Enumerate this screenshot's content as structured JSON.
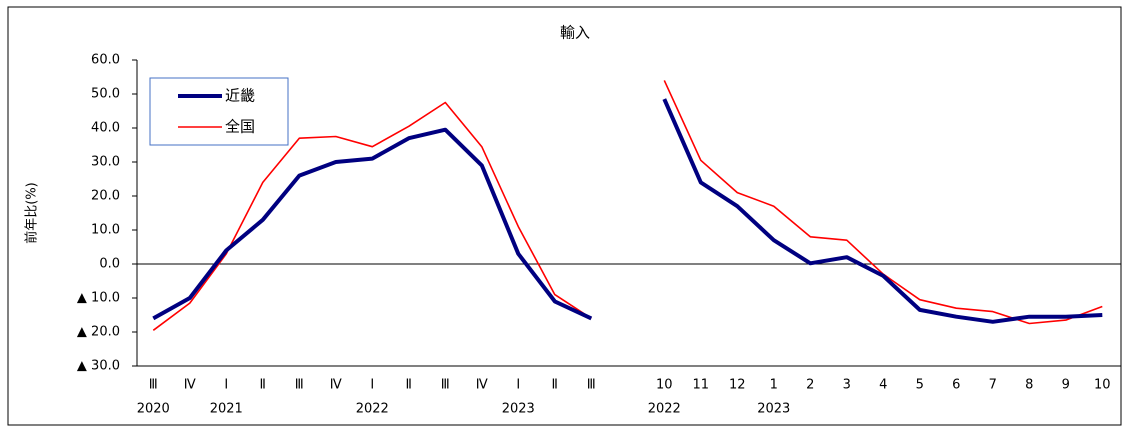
{
  "chart_data": {
    "type": "line",
    "title": "輸入",
    "y_label": "前年比(%)",
    "categories": [
      "Ⅲ",
      "Ⅳ",
      "Ⅰ",
      "Ⅱ",
      "Ⅲ",
      "Ⅳ",
      "Ⅰ",
      "Ⅱ",
      "Ⅲ",
      "Ⅳ",
      "Ⅰ",
      "Ⅱ",
      "Ⅲ",
      null,
      "10",
      "11",
      "12",
      "1",
      "2",
      "3",
      "4",
      "5",
      "6",
      "7",
      "8",
      "9",
      "10"
    ],
    "year_labels": [
      "2020",
      null,
      "2021",
      null,
      null,
      null,
      "2022",
      null,
      null,
      null,
      "2023",
      null,
      null,
      null,
      "2022",
      null,
      null,
      "2023",
      null,
      null,
      null,
      null,
      null,
      null,
      null,
      null,
      null
    ],
    "series": [
      {
        "name": "近畿",
        "color": "#000080",
        "width": 4,
        "values": [
          -16,
          -10,
          4,
          13,
          26,
          30,
          31,
          37,
          39.5,
          29,
          3,
          -11,
          -16,
          null,
          48.5,
          24,
          17,
          7,
          0.2,
          2,
          -3.5,
          -13.5,
          -15.5,
          -17,
          -15.5,
          -15.5,
          -15
        ]
      },
      {
        "name": "全国",
        "color": "#ff0000",
        "width": 1.6,
        "values": [
          -19.5,
          -11.5,
          3,
          24,
          37,
          37.5,
          34.5,
          40.5,
          47.5,
          34.5,
          11,
          -9,
          -16,
          null,
          54,
          30.5,
          21,
          17,
          8,
          7,
          -3,
          -10.5,
          -13,
          -14,
          -17.5,
          -16.5,
          -12.5
        ]
      }
    ],
    "ylim": [
      -30,
      60
    ],
    "yticks": [
      {
        "value": 60,
        "label": "60.0"
      },
      {
        "value": 50,
        "label": "50.0"
      },
      {
        "value": 40,
        "label": "40.0"
      },
      {
        "value": 30,
        "label": "30.0"
      },
      {
        "value": 20,
        "label": "20.0"
      },
      {
        "value": 10,
        "label": "10.0"
      },
      {
        "value": 0,
        "label": "0.0"
      },
      {
        "value": -10,
        "label": "▲ 10.0"
      },
      {
        "value": -20,
        "label": "▲ 20.0"
      },
      {
        "value": -30,
        "label": "▲ 30.0"
      }
    ],
    "grid": false,
    "legend": "upper left"
  }
}
